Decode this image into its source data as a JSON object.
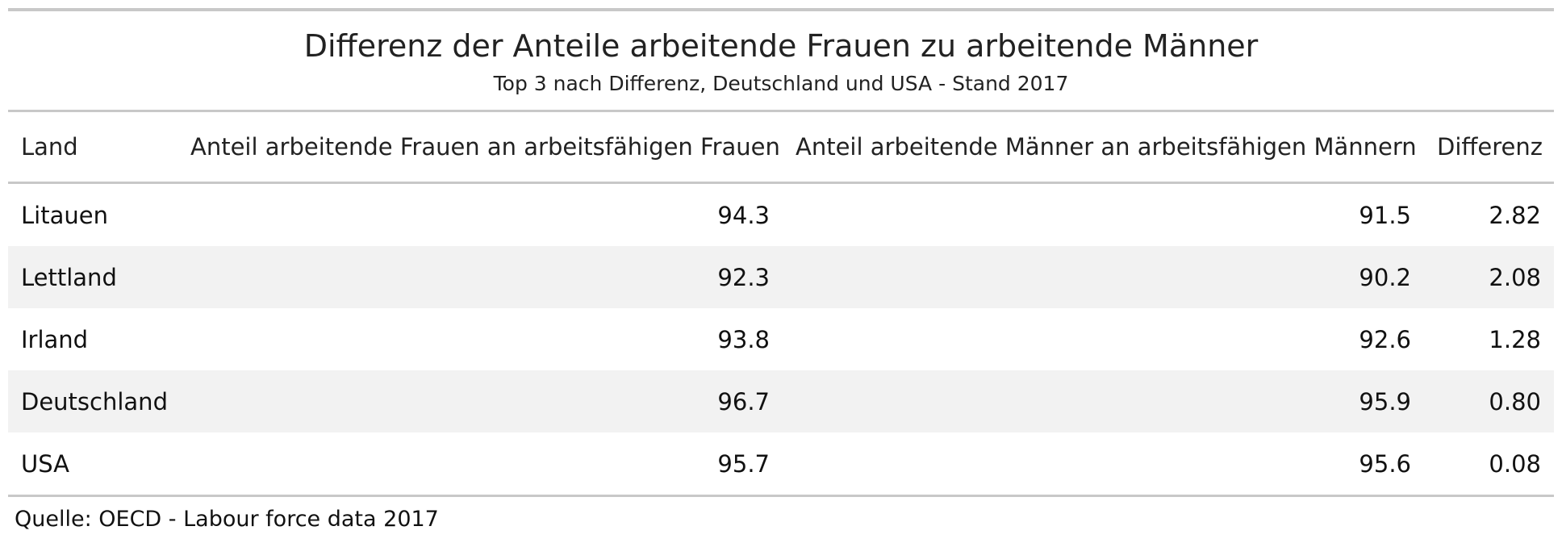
{
  "chart_data": {
    "type": "table",
    "title": "Differenz der Anteile arbeitende Frauen zu arbeitende Männer",
    "subtitle": "Top 3 nach Differenz, Deutschland und USA - Stand 2017",
    "columns": [
      "Land",
      "Anteil arbeitende Frauen an arbeitsfähigen Frauen",
      "Anteil arbeitende Männer an arbeitsfähigen Männern",
      "Differenz"
    ],
    "rows": [
      [
        "Litauen",
        "94.3",
        "91.5",
        "2.82"
      ],
      [
        "Lettland",
        "92.3",
        "90.2",
        "2.08"
      ],
      [
        "Irland",
        "93.8",
        "92.6",
        "1.28"
      ],
      [
        "Deutschland",
        "96.7",
        "95.9",
        "0.80"
      ],
      [
        "USA",
        "95.7",
        "95.6",
        "0.08"
      ]
    ],
    "source": "Quelle: OECD - Labour force data 2017"
  }
}
